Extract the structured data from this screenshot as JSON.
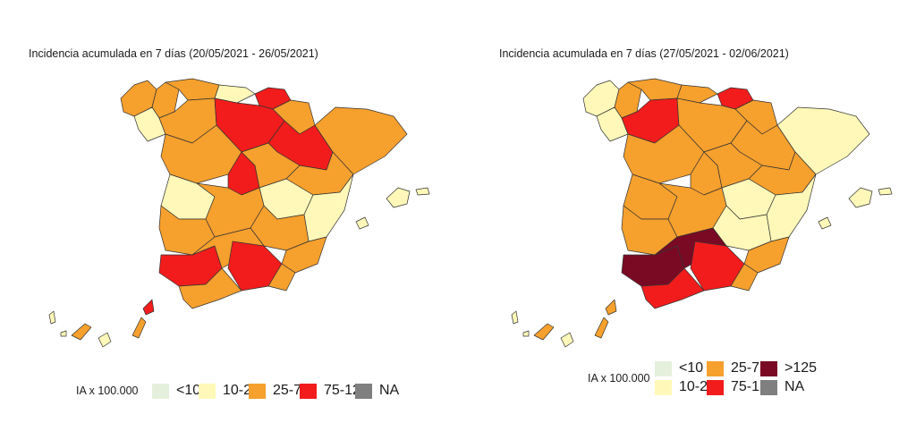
{
  "maps": [
    {
      "title": "Incidencia acumulada en 7 días (20/05/2021 - 26/05/2021)",
      "legend_title": "IA x 100.000",
      "legend": [
        {
          "label": "<10",
          "color": "#e5f0dc"
        },
        {
          "label": "10-25",
          "color": "#fff8b8"
        },
        {
          "label": "25-75",
          "color": "#f6a02d"
        },
        {
          "label": "75-125",
          "color": "#f21c1c"
        },
        {
          "label": "NA",
          "color": "#7f7f7f"
        }
      ],
      "regions": [
        {
          "name": "galicia-northwest",
          "color": "#f6a02d"
        },
        {
          "name": "galicia-lugo",
          "color": "#f6a02d"
        },
        {
          "name": "galicia-ourense",
          "color": "#fff8b8"
        },
        {
          "name": "asturias",
          "color": "#f6a02d"
        },
        {
          "name": "cantabria",
          "color": "#fff8b8"
        },
        {
          "name": "basque",
          "color": "#f21c1c"
        },
        {
          "name": "navarra",
          "color": "#f6a02d"
        },
        {
          "name": "leon",
          "color": "#f6a02d"
        },
        {
          "name": "palencia-burgos",
          "color": "#f21c1c"
        },
        {
          "name": "zaragoza",
          "color": "#f21c1c"
        },
        {
          "name": "catalonia",
          "color": "#f6a02d"
        },
        {
          "name": "salamanca",
          "color": "#f6a02d"
        },
        {
          "name": "madrid",
          "color": "#f21c1c"
        },
        {
          "name": "guadalajara",
          "color": "#f6a02d"
        },
        {
          "name": "teruel",
          "color": "#f6a02d"
        },
        {
          "name": "caceres",
          "color": "#fff8b8"
        },
        {
          "name": "badajoz",
          "color": "#f6a02d"
        },
        {
          "name": "cuenca",
          "color": "#fff8b8"
        },
        {
          "name": "valencia",
          "color": "#fff8b8"
        },
        {
          "name": "ciudad-real",
          "color": "#f6a02d"
        },
        {
          "name": "albacete",
          "color": "#f6a02d"
        },
        {
          "name": "murcia",
          "color": "#f6a02d"
        },
        {
          "name": "huelva-sevilla",
          "color": "#f21c1c"
        },
        {
          "name": "cordoba-jaen",
          "color": "#f6a02d"
        },
        {
          "name": "granada",
          "color": "#f21c1c"
        },
        {
          "name": "almeria",
          "color": "#f6a02d"
        },
        {
          "name": "cadiz-malaga",
          "color": "#f6a02d"
        },
        {
          "name": "mallorca",
          "color": "#fff8b8"
        },
        {
          "name": "menorca",
          "color": "#fff8b8"
        },
        {
          "name": "ibiza",
          "color": "#fff8b8"
        },
        {
          "name": "lanzarote",
          "color": "#f21c1c"
        },
        {
          "name": "fuerteventura",
          "color": "#f6a02d"
        },
        {
          "name": "gran-canaria",
          "color": "#fff8b8"
        },
        {
          "name": "tenerife",
          "color": "#f6a02d"
        },
        {
          "name": "la-palma",
          "color": "#fff8b8"
        },
        {
          "name": "la-gomera",
          "color": "#fff8b8"
        }
      ]
    },
    {
      "title": "Incidencia acumulada en 7 días (27/05/2021 - 02/06/2021)",
      "legend_title": "IA x 100.000",
      "legend": [
        {
          "label": "<10",
          "color": "#e5f0dc"
        },
        {
          "label": "25-75",
          "color": "#f6a02d"
        },
        {
          "label": ">125",
          "color": "#7a0a24"
        },
        {
          "label": "10-25",
          "color": "#fff8b8"
        },
        {
          "label": "75-125",
          "color": "#f21c1c"
        },
        {
          "label": "NA",
          "color": "#7f7f7f"
        }
      ],
      "regions": [
        {
          "name": "galicia-northwest",
          "color": "#fff8b8"
        },
        {
          "name": "galicia-lugo",
          "color": "#f6a02d"
        },
        {
          "name": "galicia-ourense",
          "color": "#fff8b8"
        },
        {
          "name": "asturias",
          "color": "#f6a02d"
        },
        {
          "name": "cantabria",
          "color": "#f6a02d"
        },
        {
          "name": "basque",
          "color": "#f21c1c"
        },
        {
          "name": "navarra",
          "color": "#f6a02d"
        },
        {
          "name": "leon",
          "color": "#f21c1c"
        },
        {
          "name": "palencia-burgos",
          "color": "#f6a02d"
        },
        {
          "name": "zaragoza",
          "color": "#f6a02d"
        },
        {
          "name": "catalonia",
          "color": "#fff8b8"
        },
        {
          "name": "salamanca",
          "color": "#f6a02d"
        },
        {
          "name": "madrid",
          "color": "#f6a02d"
        },
        {
          "name": "guadalajara",
          "color": "#f6a02d"
        },
        {
          "name": "teruel",
          "color": "#f6a02d"
        },
        {
          "name": "caceres",
          "color": "#f6a02d"
        },
        {
          "name": "badajoz",
          "color": "#f6a02d"
        },
        {
          "name": "cuenca",
          "color": "#fff8b8"
        },
        {
          "name": "valencia",
          "color": "#fff8b8"
        },
        {
          "name": "ciudad-real",
          "color": "#f6a02d"
        },
        {
          "name": "albacete",
          "color": "#fff8b8"
        },
        {
          "name": "murcia",
          "color": "#f6a02d"
        },
        {
          "name": "huelva-sevilla",
          "color": "#7a0a24"
        },
        {
          "name": "cordoba-jaen",
          "color": "#7a0a24"
        },
        {
          "name": "granada",
          "color": "#f21c1c"
        },
        {
          "name": "almeria",
          "color": "#f6a02d"
        },
        {
          "name": "cadiz-malaga",
          "color": "#f21c1c"
        },
        {
          "name": "mallorca",
          "color": "#fff8b8"
        },
        {
          "name": "menorca",
          "color": "#fff8b8"
        },
        {
          "name": "ibiza",
          "color": "#fff8b8"
        },
        {
          "name": "lanzarote",
          "color": "#f6a02d"
        },
        {
          "name": "fuerteventura",
          "color": "#f6a02d"
        },
        {
          "name": "gran-canaria",
          "color": "#fff8b8"
        },
        {
          "name": "tenerife",
          "color": "#f6a02d"
        },
        {
          "name": "la-palma",
          "color": "#fff8b8"
        },
        {
          "name": "la-gomera",
          "color": "#fff8b8"
        }
      ]
    }
  ]
}
